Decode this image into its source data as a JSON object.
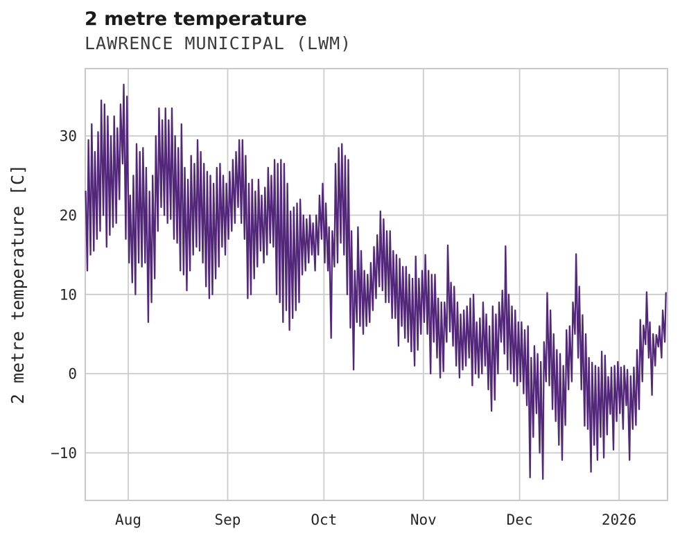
{
  "header": {
    "title": "2 metre temperature",
    "subtitle": "LAWRENCE MUNICIPAL (LWM)"
  },
  "chart_data": {
    "type": "line",
    "title": "2 metre temperature",
    "subtitle": "LAWRENCE MUNICIPAL (LWM)",
    "ylabel": "2 metre temperature [C]",
    "xlabel": "",
    "units": "C",
    "legend": "none",
    "grid": "on",
    "line_color": "#53287b",
    "grid_color": "#cccccc",
    "spine_color": "#c9c9c9",
    "ylim": [
      -16,
      38.5
    ],
    "yticks": [
      {
        "label": "30",
        "value": 30
      },
      {
        "label": "20",
        "value": 20
      },
      {
        "label": "10",
        "value": 10
      },
      {
        "label": "0",
        "value": 0
      },
      {
        "label": "−10",
        "value": -10
      }
    ],
    "x_axis": {
      "total_days": 181.5,
      "months": [
        {
          "label": "Aug",
          "day": 13.4
        },
        {
          "label": "Sep",
          "day": 44.4
        },
        {
          "label": "Oct",
          "day": 74.4
        },
        {
          "label": "Nov",
          "day": 105.4
        },
        {
          "label": "Dec",
          "day": 135.4
        },
        {
          "label": "2026",
          "day": 166.4
        }
      ]
    },
    "sampling": "daily minimum and maximum, estimated from plot",
    "first_value": 23,
    "t_min": [
      13,
      15,
      15.5,
      17,
      18,
      20,
      16,
      17.5,
      18.5,
      19,
      22,
      26.5,
      17,
      14,
      11.5,
      10,
      14,
      13.5,
      14,
      6.5,
      9,
      12,
      18,
      21,
      20,
      19,
      19.5,
      17,
      16.5,
      13,
      12.5,
      10.5,
      13,
      15,
      16,
      15.5,
      14,
      11,
      9.5,
      10,
      12,
      13.5,
      16,
      15,
      17,
      18,
      19,
      21,
      19,
      17,
      9.5,
      10,
      12,
      13.5,
      15.5,
      14,
      15,
      16.5,
      16,
      10,
      9,
      6.5,
      8,
      5.5,
      7,
      8,
      9,
      12.5,
      13,
      14,
      15,
      13,
      15,
      17,
      14,
      13,
      4.5,
      13.5,
      14,
      16.5,
      15,
      10,
      5.8,
      0.5,
      6.5,
      6,
      5,
      6,
      6.5,
      8,
      9.5,
      11,
      10.5,
      9,
      9,
      7,
      7,
      3.5,
      6,
      4.5,
      4,
      2.8,
      1,
      3,
      5,
      6.5,
      5,
      0,
      4,
      2,
      -0.5,
      0.3,
      4,
      5.3,
      3.5,
      1,
      -0.5,
      0.5,
      1,
      2,
      -1.5,
      0,
      -0.5,
      0,
      1,
      -2,
      -4.7,
      -3.3,
      0,
      4,
      2.5,
      0.5,
      0,
      -1,
      -1.5,
      -1,
      -2.5,
      -4,
      -13.1,
      -8,
      -5,
      -10,
      -13.3,
      -1,
      -1.5,
      -4.5,
      -6,
      -9,
      -10.9,
      -6.5,
      -2,
      -1,
      5,
      2,
      -2,
      -6.6,
      -7,
      -12.4,
      -9,
      -10.9,
      -8,
      -10.6,
      -7.7,
      -5.1,
      -9.6,
      -6,
      -5,
      -7,
      -4,
      -10.9,
      -7,
      -6.5,
      -4.5,
      -1,
      3.7,
      2,
      -2.7,
      1,
      3.4,
      2,
      4
    ],
    "t_max": [
      29.5,
      31.5,
      28,
      30.5,
      34.5,
      34,
      32.5,
      30,
      32.5,
      31,
      34,
      36.5,
      35,
      22.5,
      25,
      29,
      28,
      28.5,
      26,
      23,
      25,
      30,
      33.5,
      32,
      33.5,
      32,
      33.5,
      30,
      28.5,
      31.5,
      26,
      24.5,
      27.5,
      26.5,
      29.5,
      28,
      26.5,
      25.5,
      25,
      24,
      26,
      26.5,
      25,
      24,
      25.5,
      27,
      28,
      29.5,
      29.5,
      27.5,
      24,
      24.5,
      23,
      24.5,
      22.5,
      23.5,
      26,
      25,
      27,
      26.5,
      27,
      26.5,
      24,
      20.5,
      21,
      21.5,
      22,
      20,
      19.5,
      20,
      19,
      20,
      22.5,
      24,
      21.5,
      18.5,
      18,
      26.5,
      28.5,
      29,
      27.5,
      27,
      18,
      13,
      18.5,
      15.5,
      13,
      12.5,
      14,
      16,
      17.5,
      20.5,
      19.5,
      18,
      18,
      15.5,
      15,
      14.5,
      13.5,
      13.5,
      12.5,
      12,
      14.8,
      12,
      13,
      15,
      13,
      12.5,
      12.5,
      9.5,
      9,
      9,
      16.2,
      11.5,
      11,
      9,
      7.5,
      8,
      8.5,
      9.5,
      10,
      6.5,
      7,
      9,
      7.5,
      6,
      8.5,
      7.5,
      9,
      10.5,
      16.1,
      10,
      8.5,
      8,
      6.5,
      6.5,
      5.5,
      6,
      2,
      3.5,
      2.5,
      1.5,
      4,
      10.2,
      8,
      5,
      3,
      2.5,
      1,
      5.5,
      6,
      9,
      15.1,
      11,
      7.4,
      5,
      2,
      1.4,
      1,
      0.8,
      2.8,
      2.3,
      -0.4,
      0.8,
      1,
      1.5,
      0.8,
      1,
      0.5,
      -0.3,
      0.8,
      3,
      6.8,
      6.1,
      10.3,
      6.5,
      5,
      4.9,
      6,
      8,
      10.2
    ]
  }
}
